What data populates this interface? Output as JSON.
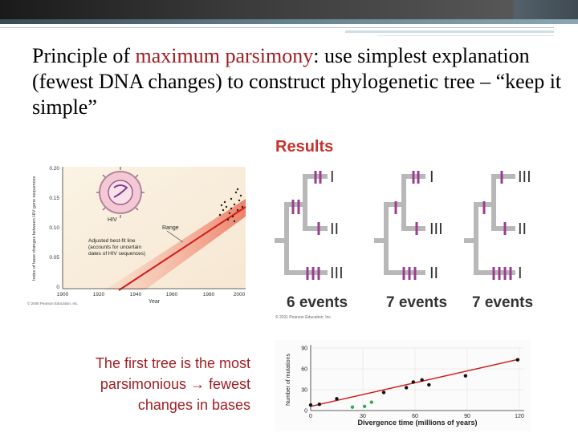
{
  "slide": {
    "title_pre": "Principle of ",
    "title_highlight": "maximum parsimony",
    "title_post": ": use simplest explanation (fewest DNA changes) to construct phylogenetic tree – “keep it simple”",
    "caption": "The first tree is the most parsimonious → fewest changes in bases"
  },
  "colors": {
    "accent_red": "#a11e24",
    "marker_purple": "#9b3d8f",
    "tree_gray": "#b8b8b8",
    "fit_line": "#d11c1c"
  },
  "hiv_chart": {
    "y_axis_label": "Index of base changes between HIV gene sequences",
    "y_ticks": [
      "0.20",
      "0.15",
      "0.10",
      "0.05",
      "0"
    ],
    "x_ticks": [
      "1900",
      "1920",
      "1940",
      "1960",
      "1980",
      "2000"
    ],
    "x_label": "Year",
    "hiv_label": "HIV",
    "range_label": "Range",
    "fit_label_1": "Adjusted best-fit line",
    "fit_label_2": "(accounts for uncertain",
    "fit_label_3": "dates of HIV sequences)",
    "copyright": "© 2008 Pearson Education, Inc."
  },
  "results": {
    "heading": "Results",
    "copyright": "© 2011 Pearson Education, Inc.",
    "trees": [
      {
        "leaves": [
          "I",
          "II",
          "III"
        ],
        "events_label": "6 events"
      },
      {
        "leaves": [
          "I",
          "III",
          "II"
        ],
        "events_label": "7 events"
      },
      {
        "leaves": [
          "III",
          "II",
          "I"
        ],
        "events_label": "7 events"
      }
    ]
  },
  "mutation_chart": {
    "type": "scatter",
    "ylabel": "Number of mutations",
    "xlabel": "Divergence time (millions of years)",
    "x_ticks": [
      "0",
      "30",
      "60",
      "90",
      "120"
    ],
    "y_ticks": [
      "0",
      "30",
      "60",
      "90"
    ],
    "xlim": [
      0,
      120
    ],
    "ylim": [
      0,
      90
    ],
    "series": [
      {
        "color": "#111111",
        "points": [
          [
            0,
            8
          ],
          [
            5,
            9
          ],
          [
            15,
            17
          ],
          [
            42,
            26
          ],
          [
            55,
            33
          ],
          [
            59,
            41
          ],
          [
            64,
            44
          ],
          [
            68,
            37
          ],
          [
            89,
            50
          ],
          [
            119,
            73
          ]
        ]
      },
      {
        "color": "#3aa85a",
        "points": [
          [
            24,
            5
          ],
          [
            31,
            6
          ],
          [
            35,
            12
          ]
        ]
      }
    ],
    "fit": [
      [
        0,
        6
      ],
      [
        120,
        74
      ]
    ]
  }
}
